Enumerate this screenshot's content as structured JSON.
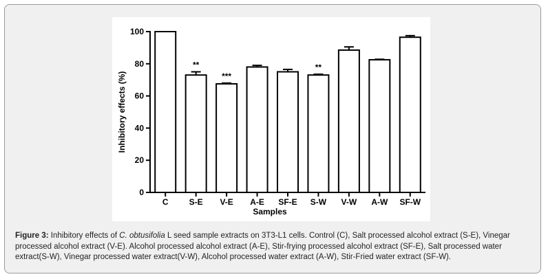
{
  "chart_data": {
    "type": "bar",
    "x_label": "Samples",
    "y_label": "Inhibitory effects (%)",
    "categories": [
      "C",
      "S-E",
      "V-E",
      "A-E",
      "SF-E",
      "S-W",
      "V-W",
      "A-W",
      "SF-W"
    ],
    "values": [
      100,
      73,
      67.5,
      78,
      75,
      73,
      88.5,
      82.5,
      96.5
    ],
    "errors": [
      0,
      2,
      0.5,
      1,
      1.5,
      0.5,
      2,
      0.3,
      1
    ],
    "annotations": [
      null,
      "**",
      "***",
      null,
      null,
      "**",
      null,
      null,
      null
    ],
    "color": "#ffffff",
    "ylim": [
      0,
      100
    ],
    "yticks": [
      0,
      20,
      40,
      60,
      80,
      100
    ],
    "grid": false
  },
  "caption": {
    "label": "Figure 3:",
    "text_before": " Inhibitory effects of ",
    "species": "C. obtusifolia",
    "text_after": " L seed sample extracts on 3T3-L1 cells. Control (C), Salt processed alcohol extract (S-E), Vinegar processed alcohol extract (V-E). Alcohol processed alcohol extract (A-E), Stir-frying processed alcohol extract (SF-E), Salt processed water extract(S-W), Vinegar processed water extract(V-W), Alcohol processed water extract (A-W), Stir-Fried water extract (SF-W)."
  }
}
